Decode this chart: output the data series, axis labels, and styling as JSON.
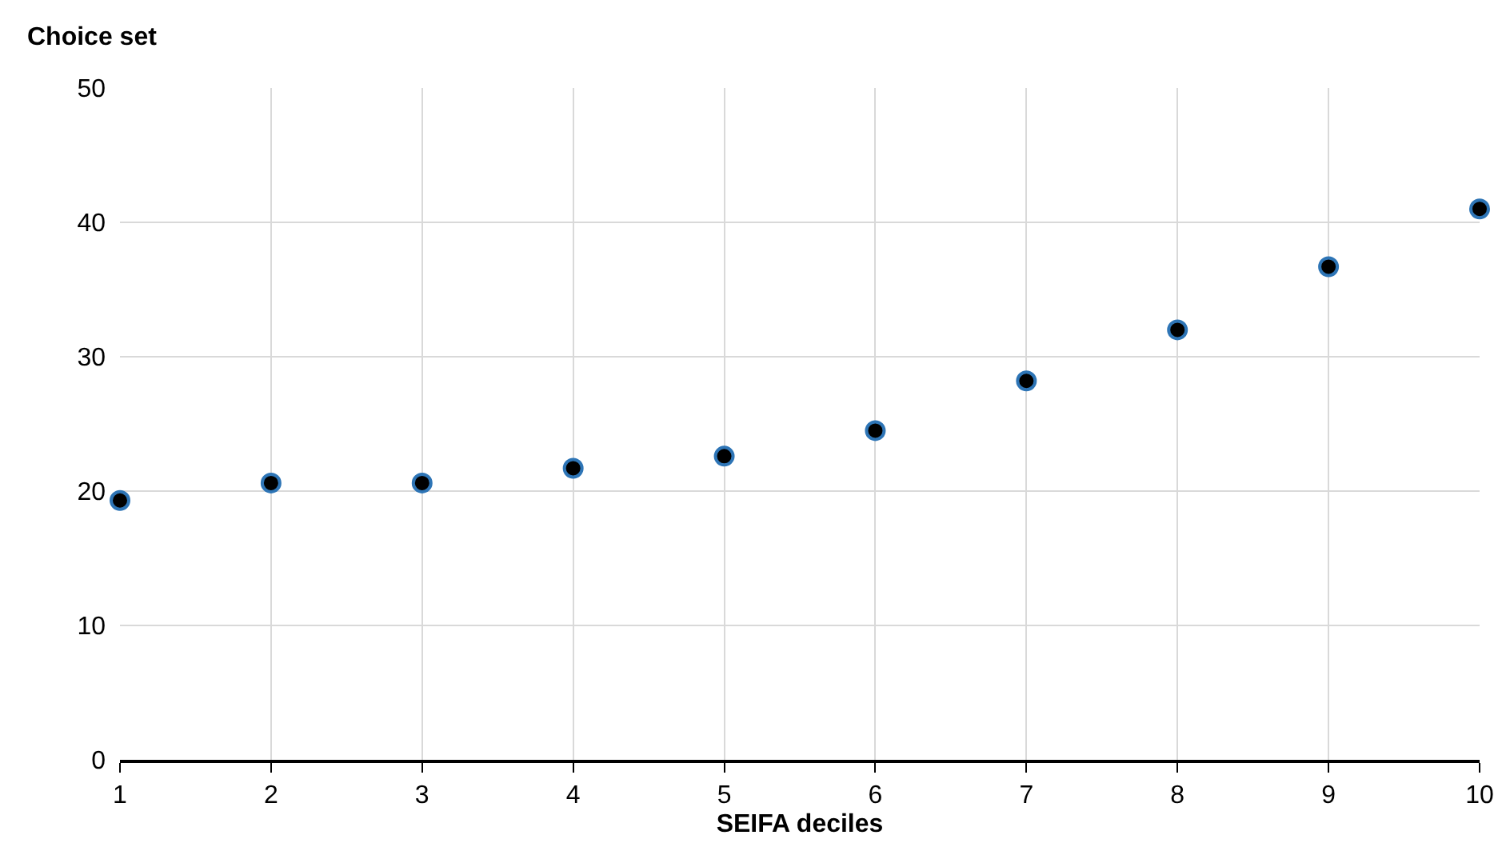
{
  "chart_data": {
    "type": "scatter",
    "ylabel": "Choice set",
    "xlabel": "SEIFA deciles",
    "x": [
      1,
      2,
      3,
      4,
      5,
      6,
      7,
      8,
      9,
      10
    ],
    "values": [
      19.3,
      20.6,
      20.6,
      21.7,
      22.6,
      24.5,
      28.2,
      32.0,
      36.7,
      41.0
    ],
    "color": "#000000",
    "marker": "circle",
    "xlim": [
      1,
      10
    ],
    "xticks": [
      1,
      2,
      3,
      4,
      5,
      6,
      7,
      8,
      9,
      10
    ],
    "ylim": [
      0,
      50
    ],
    "yticks": [
      0,
      10,
      20,
      30,
      40,
      50
    ],
    "grid": true
  }
}
